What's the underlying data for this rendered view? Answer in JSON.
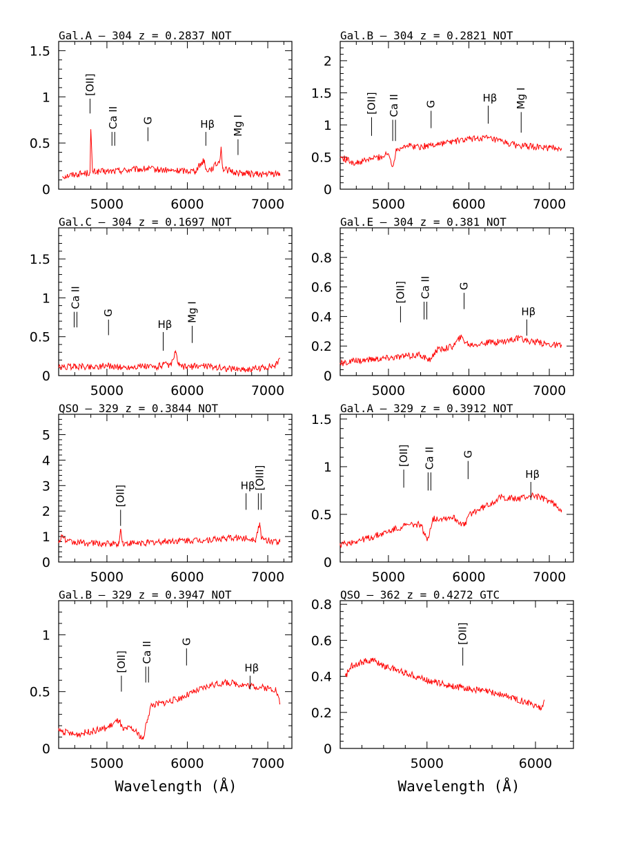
{
  "chart_data": [
    {
      "type": "line",
      "title": "Gal.A –  304   z = 0.2837 NOT",
      "xlim": [
        4400,
        7300
      ],
      "ylim": [
        0,
        1.6
      ],
      "xticks": [
        5000,
        6000,
        7000
      ],
      "yticks": [
        0,
        0.5,
        1,
        1.5
      ],
      "ytick_labels": [
        "0",
        "0.5",
        "1",
        "1.5"
      ],
      "series": [
        {
          "x": [
            4450,
            4600,
            4700,
            4790,
            4800,
            4820,
            5000,
            5300,
            5500,
            5800,
            6100,
            6210,
            6230,
            6300,
            6400,
            6420,
            6440,
            6600,
            6900,
            7150
          ],
          "y": [
            0.14,
            0.16,
            0.17,
            0.18,
            0.65,
            0.19,
            0.19,
            0.21,
            0.22,
            0.2,
            0.2,
            0.32,
            0.21,
            0.22,
            0.3,
            0.46,
            0.22,
            0.18,
            0.16,
            0.17
          ]
        }
      ],
      "lines": [
        {
          "label": "[OII]",
          "x": 4790,
          "y0": 0.82,
          "y1": 0.98,
          "double": false
        },
        {
          "label": "Ca II",
          "x": 5080,
          "y0": 0.47,
          "y1": 0.62,
          "double": true
        },
        {
          "label": "G",
          "x": 5510,
          "y0": 0.52,
          "y1": 0.67,
          "double": false
        },
        {
          "label": "Hβ",
          "x": 6230,
          "y0": 0.47,
          "y1": 0.62,
          "double": false
        },
        {
          "label": "Mg I",
          "x": 6630,
          "y0": 0.37,
          "y1": 0.54,
          "double": false
        }
      ]
    },
    {
      "type": "line",
      "title": "Gal.B –  304   z = 0.2821 NOT",
      "xlim": [
        4400,
        7300
      ],
      "ylim": [
        0,
        2.3
      ],
      "xticks": [
        5000,
        6000,
        7000
      ],
      "yticks": [
        0,
        0.5,
        1,
        1.5,
        2
      ],
      "ytick_labels": [
        "0",
        "0.5",
        "1",
        "1.5",
        "2"
      ],
      "series": [
        {
          "x": [
            4400,
            4600,
            4800,
            4900,
            5000,
            5050,
            5100,
            5200,
            5400,
            5600,
            5800,
            6000,
            6200,
            6400,
            6600,
            6800,
            7000,
            7150
          ],
          "y": [
            0.5,
            0.4,
            0.48,
            0.5,
            0.55,
            0.35,
            0.62,
            0.68,
            0.66,
            0.7,
            0.74,
            0.78,
            0.8,
            0.74,
            0.68,
            0.66,
            0.64,
            0.64
          ]
        }
      ],
      "lines": [
        {
          "label": "[OII]",
          "x": 4790,
          "y0": 0.83,
          "y1": 1.12,
          "double": false
        },
        {
          "label": "Ca II",
          "x": 5070,
          "y0": 0.75,
          "y1": 1.08,
          "double": true
        },
        {
          "label": "G",
          "x": 5530,
          "y0": 0.95,
          "y1": 1.22,
          "double": false
        },
        {
          "label": "Hβ",
          "x": 6240,
          "y0": 1.02,
          "y1": 1.3,
          "double": false
        },
        {
          "label": "Mg I",
          "x": 6650,
          "y0": 0.88,
          "y1": 1.2,
          "double": false
        }
      ]
    },
    {
      "type": "line",
      "title": "Gal.C –  304    z = 0.1697 NOT",
      "xlim": [
        4400,
        7300
      ],
      "ylim": [
        0,
        1.9
      ],
      "xticks": [
        5000,
        6000,
        7000
      ],
      "yticks": [
        0,
        0.5,
        1,
        1.5
      ],
      "ytick_labels": [
        "0",
        "0.5",
        "1",
        "1.5"
      ],
      "series": [
        {
          "x": [
            4400,
            4600,
            4800,
            5000,
            5200,
            5400,
            5600,
            5700,
            5800,
            5850,
            5900,
            6000,
            6200,
            6500,
            6800,
            7100,
            7150
          ],
          "y": [
            0.1,
            0.12,
            0.11,
            0.13,
            0.1,
            0.12,
            0.11,
            0.14,
            0.13,
            0.3,
            0.12,
            0.11,
            0.13,
            0.09,
            0.08,
            0.13,
            0.22
          ]
        }
      ],
      "lines": [
        {
          "label": "Ca II",
          "x": 4610,
          "y0": 0.62,
          "y1": 0.82,
          "double": true
        },
        {
          "label": "G",
          "x": 5020,
          "y0": 0.52,
          "y1": 0.72,
          "double": false
        },
        {
          "label": "Hβ",
          "x": 5700,
          "y0": 0.32,
          "y1": 0.56,
          "double": false
        },
        {
          "label": "Mg I",
          "x": 6060,
          "y0": 0.42,
          "y1": 0.64,
          "double": false
        }
      ]
    },
    {
      "type": "line",
      "title": "Gal.E –  304    z = 0.381 NOT",
      "xlim": [
        4400,
        7300
      ],
      "ylim": [
        0,
        1.0
      ],
      "xticks": [
        5000,
        6000,
        7000
      ],
      "yticks": [
        0,
        0.2,
        0.4,
        0.6,
        0.8
      ],
      "ytick_labels": [
        "0",
        "0.2",
        "0.4",
        "0.6",
        "0.8"
      ],
      "series": [
        {
          "x": [
            4400,
            4600,
            4800,
            5000,
            5200,
            5400,
            5500,
            5600,
            5800,
            5900,
            6000,
            6200,
            6400,
            6600,
            6700,
            6900,
            7150
          ],
          "y": [
            0.08,
            0.1,
            0.11,
            0.12,
            0.13,
            0.14,
            0.1,
            0.17,
            0.2,
            0.26,
            0.21,
            0.22,
            0.23,
            0.25,
            0.24,
            0.22,
            0.2
          ]
        }
      ],
      "lines": [
        {
          "label": "[OII]",
          "x": 5150,
          "y0": 0.36,
          "y1": 0.47,
          "double": false
        },
        {
          "label": "Ca II",
          "x": 5460,
          "y0": 0.38,
          "y1": 0.5,
          "double": true
        },
        {
          "label": "G",
          "x": 5940,
          "y0": 0.45,
          "y1": 0.56,
          "double": false
        },
        {
          "label": "Hβ",
          "x": 6720,
          "y0": 0.27,
          "y1": 0.38,
          "double": false
        }
      ]
    },
    {
      "type": "line",
      "title": "QSO –  329   z = 0.3844 NOT",
      "xlim": [
        4400,
        7300
      ],
      "ylim": [
        0,
        5.8
      ],
      "xticks": [
        5000,
        6000,
        7000
      ],
      "yticks": [
        0,
        1,
        2,
        3,
        4,
        5
      ],
      "ytick_labels": [
        "0",
        "1",
        "2",
        "3",
        "4",
        "5"
      ],
      "series": [
        {
          "x": [
            4400,
            4450,
            4500,
            4700,
            5000,
            5150,
            5170,
            5200,
            5500,
            5800,
            6200,
            6600,
            6850,
            6900,
            6920,
            6950,
            7150
          ],
          "y": [
            0.75,
            1.05,
            0.8,
            0.75,
            0.72,
            0.72,
            1.3,
            0.72,
            0.75,
            0.82,
            0.86,
            0.95,
            0.9,
            1.55,
            0.9,
            0.88,
            0.78
          ]
        }
      ],
      "lines": [
        {
          "label": "[OII]",
          "x": 5170,
          "y0": 1.42,
          "y1": 2.05,
          "double": false
        },
        {
          "label": "Hβ",
          "x": 6730,
          "y0": 2.05,
          "y1": 2.7,
          "double": false
        },
        {
          "label": "[OIII]",
          "x": 6900,
          "y0": 2.05,
          "y1": 2.7,
          "double": true
        }
      ]
    },
    {
      "type": "line",
      "title": "Gal.A –  329   z = 0.3912 NOT",
      "xlim": [
        4400,
        7300
      ],
      "ylim": [
        0,
        1.55
      ],
      "xticks": [
        5000,
        6000,
        7000
      ],
      "yticks": [
        0,
        0.5,
        1,
        1.5
      ],
      "ytick_labels": [
        "0",
        "0.5",
        "1",
        "1.5"
      ],
      "series": [
        {
          "x": [
            4400,
            4600,
            4800,
            5000,
            5200,
            5400,
            5480,
            5550,
            5800,
            5950,
            6000,
            6200,
            6400,
            6600,
            6800,
            7000,
            7150
          ],
          "y": [
            0.18,
            0.22,
            0.26,
            0.32,
            0.38,
            0.4,
            0.22,
            0.45,
            0.47,
            0.38,
            0.5,
            0.58,
            0.68,
            0.66,
            0.7,
            0.64,
            0.55
          ]
        }
      ],
      "lines": [
        {
          "label": "[OII]",
          "x": 5190,
          "y0": 0.78,
          "y1": 0.97,
          "double": false
        },
        {
          "label": "Ca II",
          "x": 5510,
          "y0": 0.75,
          "y1": 0.94,
          "double": true
        },
        {
          "label": "G",
          "x": 5990,
          "y0": 0.87,
          "y1": 1.06,
          "double": false
        },
        {
          "label": "Hβ",
          "x": 6770,
          "y0": 0.65,
          "y1": 0.84,
          "double": false
        }
      ]
    },
    {
      "type": "line",
      "title": "Gal.B –  329    z = 0.3947 NOT",
      "xlim": [
        4400,
        7300
      ],
      "ylim": [
        0,
        1.3
      ],
      "xticks": [
        5000,
        6000,
        7000
      ],
      "yticks": [
        0,
        0.5,
        1
      ],
      "ytick_labels": [
        "0",
        "0.5",
        "1"
      ],
      "series": [
        {
          "x": [
            4400,
            4600,
            4800,
            5000,
            5150,
            5200,
            5300,
            5400,
            5450,
            5500,
            5550,
            5700,
            5900,
            6100,
            6300,
            6500,
            6700,
            6900,
            7100,
            7150
          ],
          "y": [
            0.16,
            0.12,
            0.15,
            0.18,
            0.25,
            0.16,
            0.18,
            0.12,
            0.08,
            0.25,
            0.38,
            0.4,
            0.44,
            0.5,
            0.56,
            0.58,
            0.56,
            0.54,
            0.52,
            0.4
          ]
        }
      ],
      "lines": [
        {
          "label": "[OII]",
          "x": 5180,
          "y0": 0.5,
          "y1": 0.64,
          "double": false
        },
        {
          "label": "Ca II",
          "x": 5500,
          "y0": 0.58,
          "y1": 0.72,
          "double": true
        },
        {
          "label": "G",
          "x": 5990,
          "y0": 0.73,
          "y1": 0.88,
          "double": false
        },
        {
          "label": "Hβ",
          "x": 6780,
          "y0": 0.52,
          "y1": 0.64,
          "double": false
        }
      ]
    },
    {
      "type": "line",
      "title": "QSO –  362   z = 0.4272 GTC",
      "xlim": [
        4200,
        6350
      ],
      "ylim": [
        0,
        0.82
      ],
      "xticks": [
        5000,
        6000
      ],
      "yticks": [
        0,
        0.2,
        0.4,
        0.6,
        0.8
      ],
      "ytick_labels": [
        "0",
        "0.2",
        "0.4",
        "0.6",
        "0.8"
      ],
      "series": [
        {
          "x": [
            4250,
            4300,
            4400,
            4500,
            4600,
            4800,
            5000,
            5200,
            5400,
            5600,
            5800,
            6000,
            6050,
            6080
          ],
          "y": [
            0.4,
            0.46,
            0.48,
            0.49,
            0.46,
            0.42,
            0.38,
            0.35,
            0.33,
            0.31,
            0.28,
            0.24,
            0.22,
            0.27
          ]
        }
      ],
      "lines": [
        {
          "label": "[OII]",
          "x": 5330,
          "y0": 0.46,
          "y1": 0.56,
          "double": false
        }
      ]
    }
  ],
  "xlabel": "Wavelength (Å)"
}
